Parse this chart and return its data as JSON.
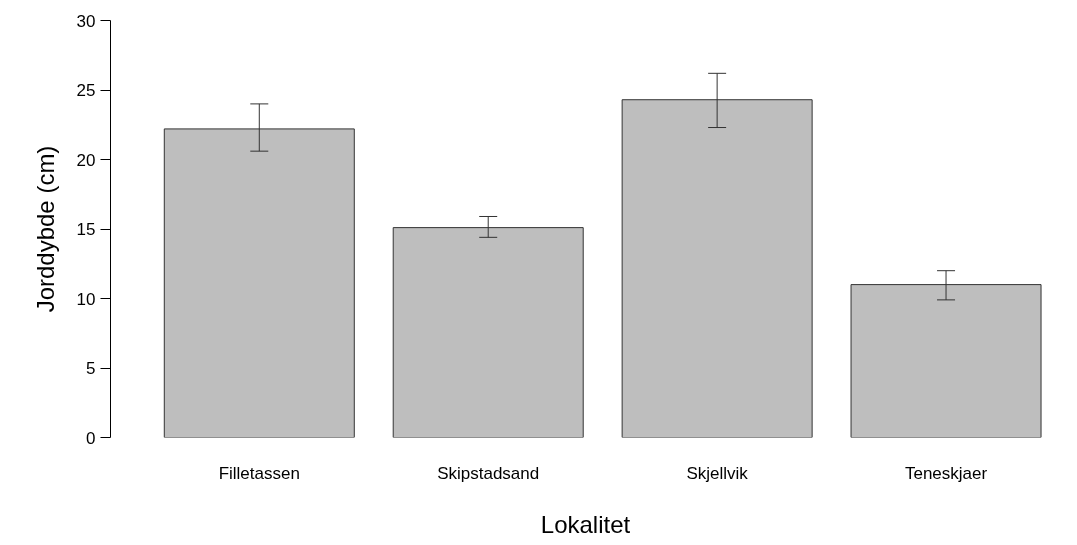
{
  "chart_data": {
    "type": "bar",
    "xlabel": "Lokalitet",
    "ylabel": "Jorddybde (cm)",
    "categories": [
      "Filletassen",
      "Skipstadsand",
      "Skjellvik",
      "Teneskjaer"
    ],
    "values": [
      22.2,
      15.1,
      24.3,
      11.0
    ],
    "errors": [
      [
        20.6,
        24.0
      ],
      [
        14.4,
        15.9
      ],
      [
        22.3,
        26.2
      ],
      [
        9.9,
        12.0
      ]
    ],
    "color": "#bebebe",
    "ylim": [
      0,
      30
    ],
    "yticks": [
      0,
      5,
      10,
      15,
      20,
      25,
      30
    ],
    "grid": false
  }
}
